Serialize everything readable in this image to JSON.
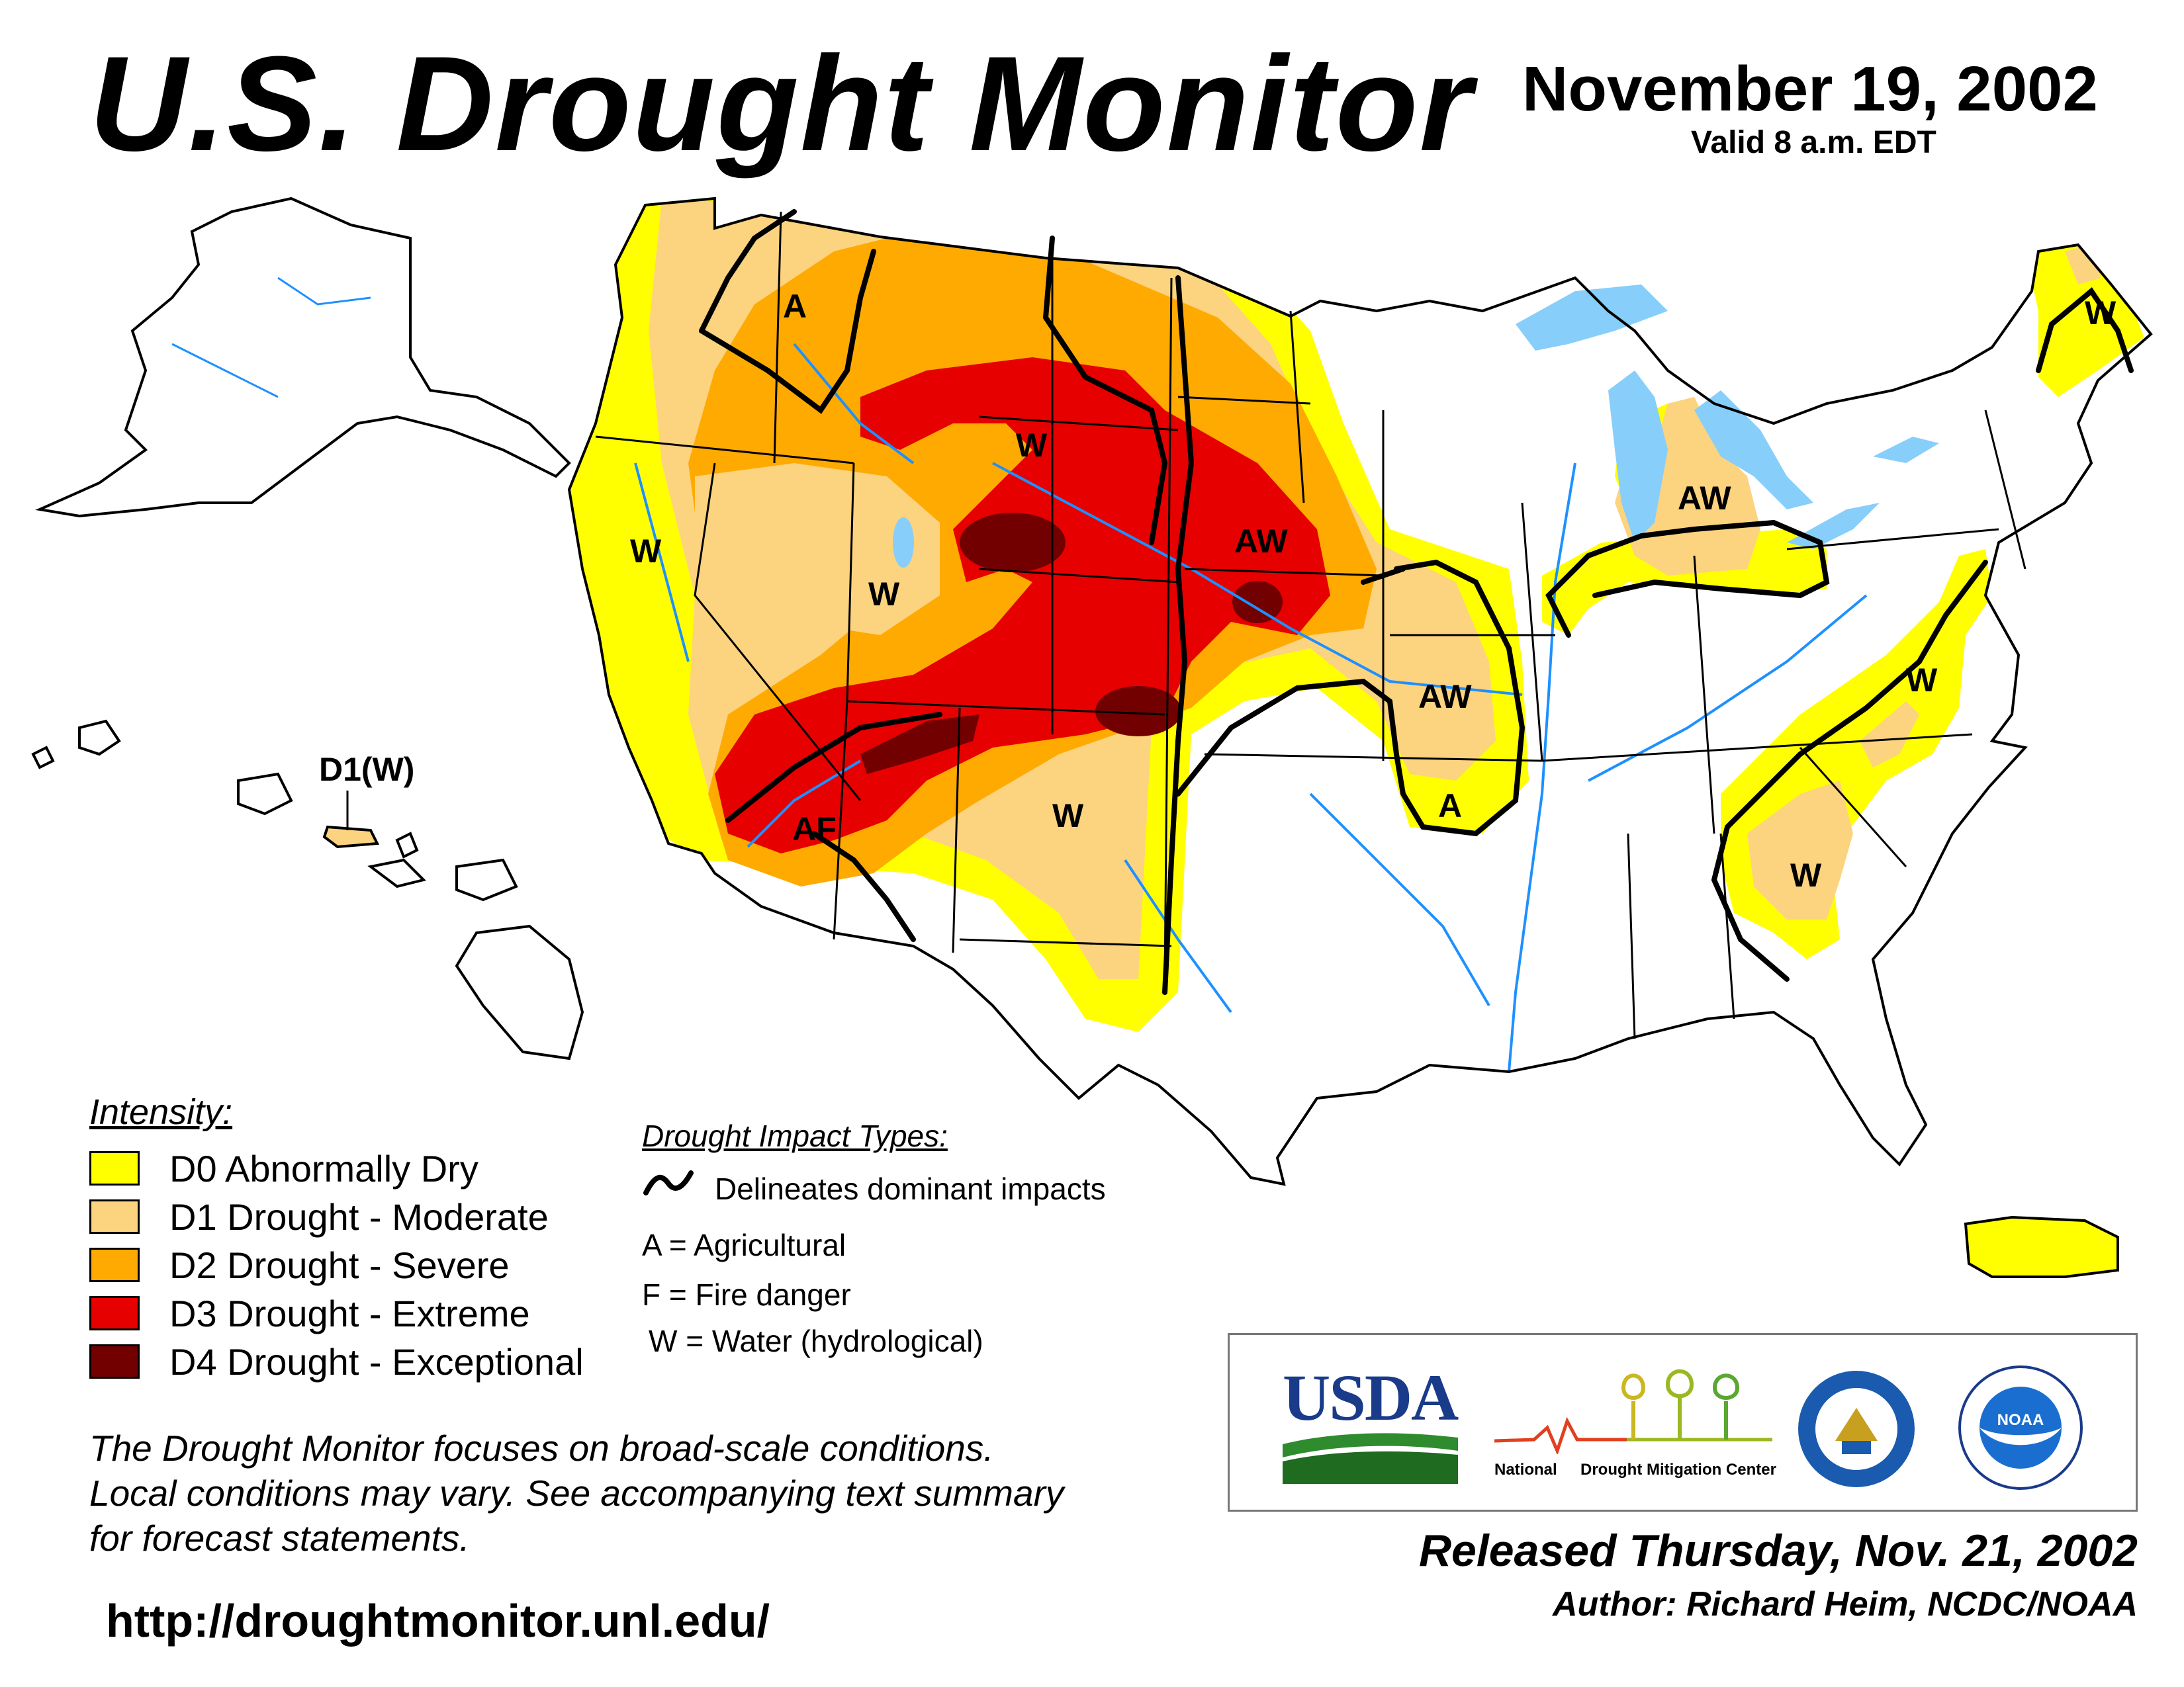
{
  "header": {
    "title": "U.S. Drought Monitor",
    "date": "November 19, 2002",
    "valid": "Valid 8 a.m. EDT"
  },
  "map": {
    "labels": {
      "a_northwest": "A",
      "w_montana": "W",
      "w_california": "W",
      "w_utah": "W",
      "aw_nebraska": "AW",
      "aw_kansas": "AW",
      "a_oklahoma": "A",
      "af_arizona": "AF",
      "w_newmexico": "W",
      "aw_michigan": "AW",
      "w_maine": "W",
      "w_virginia": "W",
      "w_carolinas": "W",
      "hawaii": "D1(W)"
    },
    "colors": {
      "d0": "#ffff00",
      "d1": "#fcd37f",
      "d2": "#ffaa00",
      "d3": "#e60000",
      "d4": "#730000",
      "water": "#87cefa",
      "river": "#1e90ff"
    }
  },
  "legend": {
    "title": "Intensity:",
    "items": [
      {
        "label": "D0 Abnormally Dry",
        "color": "#ffff00"
      },
      {
        "label": "D1 Drought - Moderate",
        "color": "#fcd37f"
      },
      {
        "label": "D2 Drought - Severe",
        "color": "#ffaa00"
      },
      {
        "label": "D3 Drought - Extreme",
        "color": "#e60000"
      },
      {
        "label": "D4 Drought - Exceptional",
        "color": "#730000"
      }
    ]
  },
  "impacts": {
    "title": "Drought Impact Types:",
    "delineates": "Delineates dominant impacts",
    "agricultural": "A = Agricultural",
    "fire": "F = Fire danger",
    "water": "W = Water (hydrological)"
  },
  "disclaimer": {
    "line1": "The Drought Monitor focuses on broad-scale conditions.",
    "line2": "Local conditions may vary. See accompanying text summary",
    "line3": "for forecast statements."
  },
  "url": "http://droughtmonitor.unl.edu/",
  "logos": {
    "usda": "USDA",
    "ndmc_1": "National",
    "ndmc_2": "Drought Mitigation Center",
    "noaa": "NOAA"
  },
  "footer": {
    "released": "Released Thursday, Nov. 21, 2002",
    "author": "Author: Richard Heim, NCDC/NOAA"
  }
}
